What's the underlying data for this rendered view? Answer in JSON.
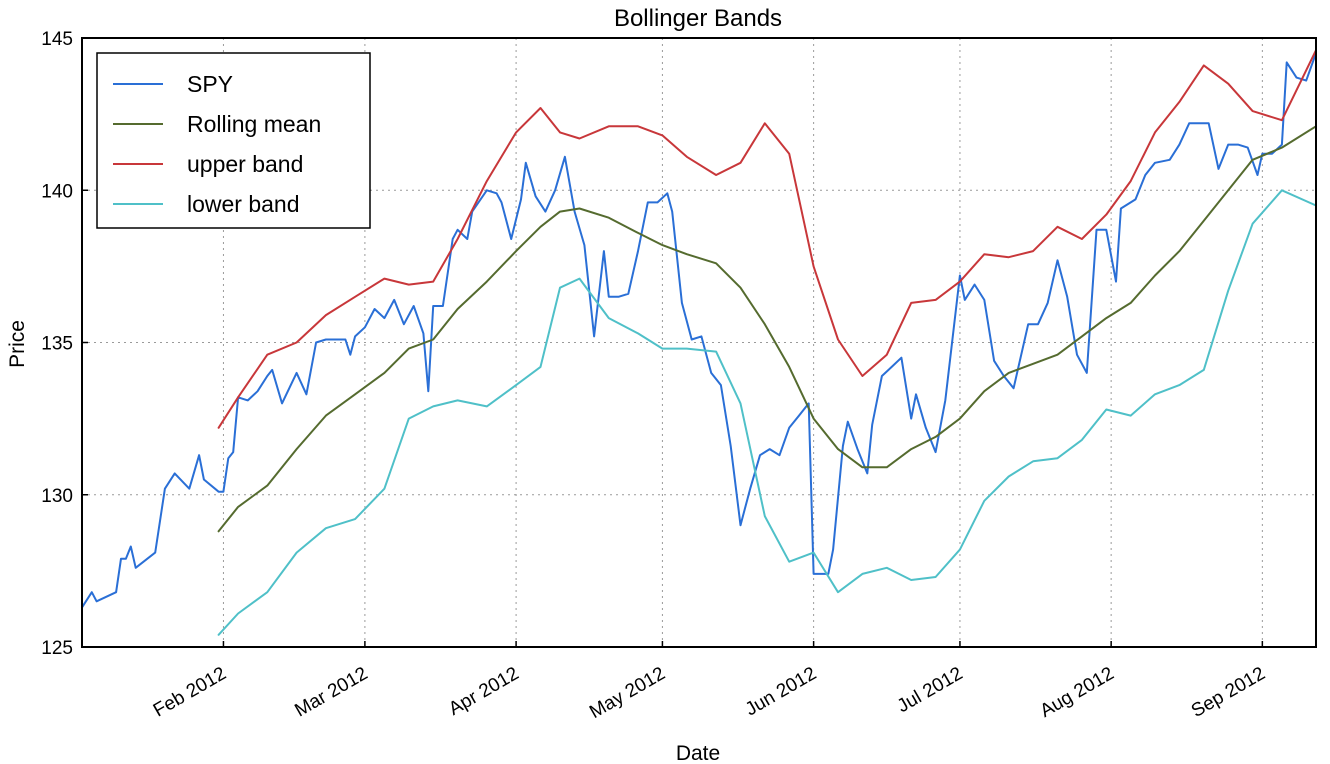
{
  "chart_data": {
    "type": "line",
    "title": "Bollinger Bands",
    "xlabel": "Date",
    "ylabel": "Price",
    "ylim": [
      125,
      145
    ],
    "yticks": [
      125,
      130,
      135,
      140,
      145
    ],
    "xlim": [
      "2012-01-03",
      "2012-09-12"
    ],
    "xticks": [
      {
        "date": "2012-02-01",
        "label": "Feb 2012"
      },
      {
        "date": "2012-03-01",
        "label": "Mar 2012"
      },
      {
        "date": "2012-04-01",
        "label": "Apr 2012"
      },
      {
        "date": "2012-05-01",
        "label": "May 2012"
      },
      {
        "date": "2012-06-01",
        "label": "Jun 2012"
      },
      {
        "date": "2012-07-01",
        "label": "Jul 2012"
      },
      {
        "date": "2012-08-01",
        "label": "Aug 2012"
      },
      {
        "date": "2012-09-01",
        "label": "Sep 2012"
      }
    ],
    "grid": true,
    "legend_position": "top-left",
    "series": [
      {
        "name": "SPY",
        "color": "#2a6fd6",
        "points": [
          [
            "2012-01-03",
            126.3
          ],
          [
            "2012-01-05",
            126.8
          ],
          [
            "2012-01-06",
            126.5
          ],
          [
            "2012-01-10",
            126.8
          ],
          [
            "2012-01-11",
            127.9
          ],
          [
            "2012-01-12",
            127.9
          ],
          [
            "2012-01-13",
            128.3
          ],
          [
            "2012-01-14",
            127.6
          ],
          [
            "2012-01-18",
            128.1
          ],
          [
            "2012-01-20",
            130.2
          ],
          [
            "2012-01-22",
            130.7
          ],
          [
            "2012-01-25",
            130.2
          ],
          [
            "2012-01-27",
            131.3
          ],
          [
            "2012-01-28",
            130.5
          ],
          [
            "2012-01-31",
            130.1
          ],
          [
            "2012-02-01",
            130.1
          ],
          [
            "2012-02-02",
            131.2
          ],
          [
            "2012-02-03",
            131.4
          ],
          [
            "2012-02-04",
            133.2
          ],
          [
            "2012-02-06",
            133.1
          ],
          [
            "2012-02-08",
            133.4
          ],
          [
            "2012-02-10",
            133.9
          ],
          [
            "2012-02-11",
            134.1
          ],
          [
            "2012-02-13",
            133.0
          ],
          [
            "2012-02-16",
            134.0
          ],
          [
            "2012-02-18",
            133.3
          ],
          [
            "2012-02-20",
            135.0
          ],
          [
            "2012-02-22",
            135.1
          ],
          [
            "2012-02-24",
            135.1
          ],
          [
            "2012-02-26",
            135.1
          ],
          [
            "2012-02-27",
            134.6
          ],
          [
            "2012-02-28",
            135.2
          ],
          [
            "2012-03-01",
            135.5
          ],
          [
            "2012-03-03",
            136.1
          ],
          [
            "2012-03-05",
            135.8
          ],
          [
            "2012-03-07",
            136.4
          ],
          [
            "2012-03-09",
            135.6
          ],
          [
            "2012-03-11",
            136.2
          ],
          [
            "2012-03-13",
            135.3
          ],
          [
            "2012-03-14",
            133.4
          ],
          [
            "2012-03-15",
            136.2
          ],
          [
            "2012-03-17",
            136.2
          ],
          [
            "2012-03-19",
            138.4
          ],
          [
            "2012-03-20",
            138.7
          ],
          [
            "2012-03-22",
            138.4
          ],
          [
            "2012-03-23",
            139.3
          ],
          [
            "2012-03-26",
            140.0
          ],
          [
            "2012-03-28",
            139.9
          ],
          [
            "2012-03-29",
            139.6
          ],
          [
            "2012-03-31",
            138.4
          ],
          [
            "2012-04-02",
            139.7
          ],
          [
            "2012-04-03",
            140.9
          ],
          [
            "2012-04-05",
            139.8
          ],
          [
            "2012-04-07",
            139.3
          ],
          [
            "2012-04-09",
            140.0
          ],
          [
            "2012-04-11",
            141.1
          ],
          [
            "2012-04-13",
            139.3
          ],
          [
            "2012-04-15",
            138.2
          ],
          [
            "2012-04-17",
            135.2
          ],
          [
            "2012-04-19",
            138.0
          ],
          [
            "2012-04-20",
            136.5
          ],
          [
            "2012-04-22",
            136.5
          ],
          [
            "2012-04-24",
            136.6
          ],
          [
            "2012-04-26",
            138.0
          ],
          [
            "2012-04-28",
            139.6
          ],
          [
            "2012-04-30",
            139.6
          ],
          [
            "2012-05-02",
            139.9
          ],
          [
            "2012-05-03",
            139.3
          ],
          [
            "2012-05-05",
            136.3
          ],
          [
            "2012-05-07",
            135.1
          ],
          [
            "2012-05-09",
            135.2
          ],
          [
            "2012-05-11",
            134.0
          ],
          [
            "2012-05-13",
            133.6
          ],
          [
            "2012-05-15",
            131.6
          ],
          [
            "2012-05-17",
            129.0
          ],
          [
            "2012-05-19",
            130.2
          ],
          [
            "2012-05-21",
            131.3
          ],
          [
            "2012-05-23",
            131.5
          ],
          [
            "2012-05-25",
            131.3
          ],
          [
            "2012-05-27",
            132.2
          ],
          [
            "2012-05-29",
            132.6
          ],
          [
            "2012-05-31",
            133.0
          ],
          [
            "2012-06-01",
            127.4
          ],
          [
            "2012-06-04",
            127.4
          ],
          [
            "2012-06-05",
            128.2
          ],
          [
            "2012-06-07",
            131.6
          ],
          [
            "2012-06-08",
            132.4
          ],
          [
            "2012-06-10",
            131.5
          ],
          [
            "2012-06-12",
            130.7
          ],
          [
            "2012-06-13",
            132.3
          ],
          [
            "2012-06-15",
            133.9
          ],
          [
            "2012-06-17",
            134.2
          ],
          [
            "2012-06-19",
            134.5
          ],
          [
            "2012-06-21",
            132.5
          ],
          [
            "2012-06-22",
            133.3
          ],
          [
            "2012-06-24",
            132.2
          ],
          [
            "2012-06-26",
            131.4
          ],
          [
            "2012-06-28",
            133.1
          ],
          [
            "2012-07-01",
            137.2
          ],
          [
            "2012-07-02",
            136.4
          ],
          [
            "2012-07-04",
            136.9
          ],
          [
            "2012-07-06",
            136.4
          ],
          [
            "2012-07-08",
            134.4
          ],
          [
            "2012-07-10",
            133.9
          ],
          [
            "2012-07-12",
            133.5
          ],
          [
            "2012-07-15",
            135.6
          ],
          [
            "2012-07-17",
            135.6
          ],
          [
            "2012-07-19",
            136.3
          ],
          [
            "2012-07-21",
            137.7
          ],
          [
            "2012-07-23",
            136.5
          ],
          [
            "2012-07-25",
            134.6
          ],
          [
            "2012-07-27",
            134.0
          ],
          [
            "2012-07-29",
            138.7
          ],
          [
            "2012-07-31",
            138.7
          ],
          [
            "2012-08-02",
            137.0
          ],
          [
            "2012-08-03",
            139.4
          ],
          [
            "2012-08-06",
            139.7
          ],
          [
            "2012-08-08",
            140.5
          ],
          [
            "2012-08-10",
            140.9
          ],
          [
            "2012-08-13",
            141.0
          ],
          [
            "2012-08-15",
            141.5
          ],
          [
            "2012-08-17",
            142.2
          ],
          [
            "2012-08-19",
            142.2
          ],
          [
            "2012-08-21",
            142.2
          ],
          [
            "2012-08-23",
            140.7
          ],
          [
            "2012-08-25",
            141.5
          ],
          [
            "2012-08-27",
            141.5
          ],
          [
            "2012-08-29",
            141.4
          ],
          [
            "2012-08-31",
            140.5
          ],
          [
            "2012-09-01",
            141.2
          ],
          [
            "2012-09-03",
            141.2
          ],
          [
            "2012-09-05",
            141.5
          ],
          [
            "2012-09-06",
            144.2
          ],
          [
            "2012-09-08",
            143.7
          ],
          [
            "2012-09-10",
            143.6
          ],
          [
            "2012-09-12",
            144.5
          ]
        ]
      },
      {
        "name": "Rolling mean",
        "color": "#556b2f",
        "points": [
          [
            "2012-01-31",
            128.8
          ],
          [
            "2012-02-04",
            129.6
          ],
          [
            "2012-02-10",
            130.3
          ],
          [
            "2012-02-16",
            131.5
          ],
          [
            "2012-02-22",
            132.6
          ],
          [
            "2012-02-28",
            133.3
          ],
          [
            "2012-03-05",
            134.0
          ],
          [
            "2012-03-10",
            134.8
          ],
          [
            "2012-03-15",
            135.1
          ],
          [
            "2012-03-20",
            136.1
          ],
          [
            "2012-03-26",
            137.0
          ],
          [
            "2012-04-01",
            138.0
          ],
          [
            "2012-04-06",
            138.8
          ],
          [
            "2012-04-10",
            139.3
          ],
          [
            "2012-04-14",
            139.4
          ],
          [
            "2012-04-20",
            139.1
          ],
          [
            "2012-04-26",
            138.6
          ],
          [
            "2012-05-01",
            138.2
          ],
          [
            "2012-05-06",
            137.9
          ],
          [
            "2012-05-12",
            137.6
          ],
          [
            "2012-05-17",
            136.8
          ],
          [
            "2012-05-22",
            135.6
          ],
          [
            "2012-05-27",
            134.2
          ],
          [
            "2012-06-01",
            132.5
          ],
          [
            "2012-06-06",
            131.5
          ],
          [
            "2012-06-11",
            130.9
          ],
          [
            "2012-06-16",
            130.9
          ],
          [
            "2012-06-21",
            131.5
          ],
          [
            "2012-06-26",
            131.9
          ],
          [
            "2012-07-01",
            132.5
          ],
          [
            "2012-07-06",
            133.4
          ],
          [
            "2012-07-11",
            134.0
          ],
          [
            "2012-07-16",
            134.3
          ],
          [
            "2012-07-21",
            134.6
          ],
          [
            "2012-07-26",
            135.2
          ],
          [
            "2012-07-31",
            135.8
          ],
          [
            "2012-08-05",
            136.3
          ],
          [
            "2012-08-10",
            137.2
          ],
          [
            "2012-08-15",
            138.0
          ],
          [
            "2012-08-20",
            139.0
          ],
          [
            "2012-08-25",
            140.0
          ],
          [
            "2012-08-30",
            141.0
          ],
          [
            "2012-09-05",
            141.4
          ],
          [
            "2012-09-12",
            142.1
          ]
        ]
      },
      {
        "name": "upper band",
        "color": "#c8373a",
        "points": [
          [
            "2012-01-31",
            132.2
          ],
          [
            "2012-02-04",
            133.2
          ],
          [
            "2012-02-10",
            134.6
          ],
          [
            "2012-02-16",
            135.0
          ],
          [
            "2012-02-22",
            135.9
          ],
          [
            "2012-02-28",
            136.5
          ],
          [
            "2012-03-05",
            137.1
          ],
          [
            "2012-03-10",
            136.9
          ],
          [
            "2012-03-15",
            137.0
          ],
          [
            "2012-03-20",
            138.4
          ],
          [
            "2012-03-26",
            140.3
          ],
          [
            "2012-04-01",
            141.9
          ],
          [
            "2012-04-06",
            142.7
          ],
          [
            "2012-04-10",
            141.9
          ],
          [
            "2012-04-14",
            141.7
          ],
          [
            "2012-04-20",
            142.1
          ],
          [
            "2012-04-26",
            142.1
          ],
          [
            "2012-05-01",
            141.8
          ],
          [
            "2012-05-06",
            141.1
          ],
          [
            "2012-05-12",
            140.5
          ],
          [
            "2012-05-17",
            140.9
          ],
          [
            "2012-05-22",
            142.2
          ],
          [
            "2012-05-27",
            141.2
          ],
          [
            "2012-06-01",
            137.5
          ],
          [
            "2012-06-06",
            135.1
          ],
          [
            "2012-06-11",
            133.9
          ],
          [
            "2012-06-16",
            134.6
          ],
          [
            "2012-06-21",
            136.3
          ],
          [
            "2012-06-26",
            136.4
          ],
          [
            "2012-07-01",
            137.0
          ],
          [
            "2012-07-06",
            137.9
          ],
          [
            "2012-07-11",
            137.8
          ],
          [
            "2012-07-16",
            138.0
          ],
          [
            "2012-07-21",
            138.8
          ],
          [
            "2012-07-26",
            138.4
          ],
          [
            "2012-07-31",
            139.2
          ],
          [
            "2012-08-05",
            140.3
          ],
          [
            "2012-08-10",
            141.9
          ],
          [
            "2012-08-15",
            142.9
          ],
          [
            "2012-08-20",
            144.1
          ],
          [
            "2012-08-25",
            143.5
          ],
          [
            "2012-08-30",
            142.6
          ],
          [
            "2012-09-05",
            142.3
          ],
          [
            "2012-09-12",
            144.6
          ]
        ]
      },
      {
        "name": "lower band",
        "color": "#4fc0c8",
        "points": [
          [
            "2012-01-31",
            125.4
          ],
          [
            "2012-02-04",
            126.1
          ],
          [
            "2012-02-10",
            126.8
          ],
          [
            "2012-02-16",
            128.1
          ],
          [
            "2012-02-22",
            128.9
          ],
          [
            "2012-02-28",
            129.2
          ],
          [
            "2012-03-05",
            130.2
          ],
          [
            "2012-03-10",
            132.5
          ],
          [
            "2012-03-15",
            132.9
          ],
          [
            "2012-03-20",
            133.1
          ],
          [
            "2012-03-26",
            132.9
          ],
          [
            "2012-04-01",
            133.6
          ],
          [
            "2012-04-06",
            134.2
          ],
          [
            "2012-04-10",
            136.8
          ],
          [
            "2012-04-14",
            137.1
          ],
          [
            "2012-04-20",
            135.8
          ],
          [
            "2012-04-26",
            135.3
          ],
          [
            "2012-05-01",
            134.8
          ],
          [
            "2012-05-06",
            134.8
          ],
          [
            "2012-05-12",
            134.7
          ],
          [
            "2012-05-17",
            133.0
          ],
          [
            "2012-05-22",
            129.3
          ],
          [
            "2012-05-27",
            127.8
          ],
          [
            "2012-06-01",
            128.1
          ],
          [
            "2012-06-06",
            126.8
          ],
          [
            "2012-06-11",
            127.4
          ],
          [
            "2012-06-16",
            127.6
          ],
          [
            "2012-06-21",
            127.2
          ],
          [
            "2012-06-26",
            127.3
          ],
          [
            "2012-07-01",
            128.2
          ],
          [
            "2012-07-06",
            129.8
          ],
          [
            "2012-07-11",
            130.6
          ],
          [
            "2012-07-16",
            131.1
          ],
          [
            "2012-07-21",
            131.2
          ],
          [
            "2012-07-26",
            131.8
          ],
          [
            "2012-07-31",
            132.8
          ],
          [
            "2012-08-05",
            132.6
          ],
          [
            "2012-08-10",
            133.3
          ],
          [
            "2012-08-15",
            133.6
          ],
          [
            "2012-08-20",
            134.1
          ],
          [
            "2012-08-25",
            136.7
          ],
          [
            "2012-08-30",
            138.9
          ],
          [
            "2012-09-05",
            140.0
          ],
          [
            "2012-09-12",
            139.5
          ]
        ]
      }
    ]
  }
}
